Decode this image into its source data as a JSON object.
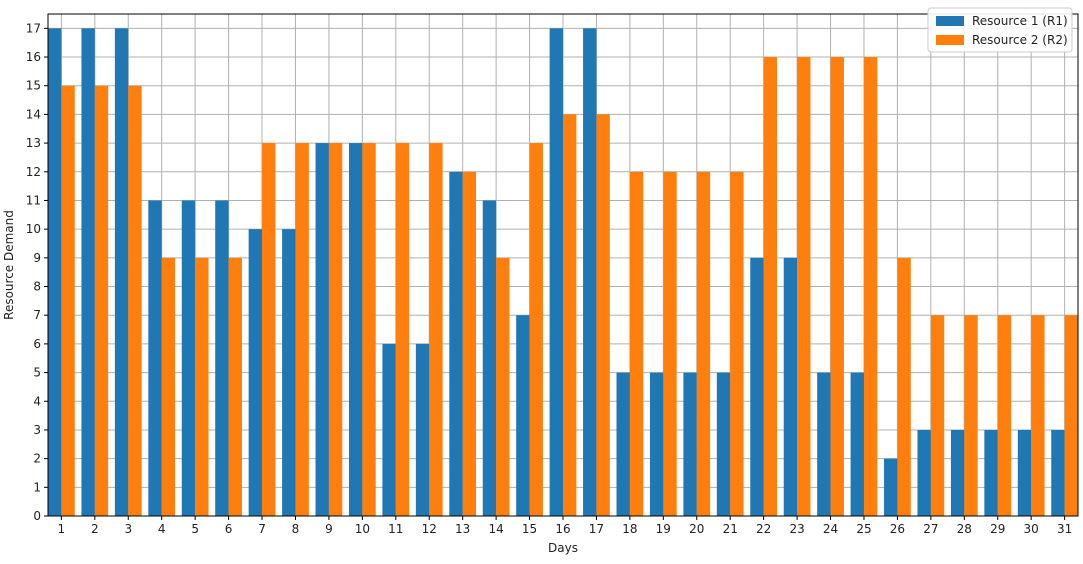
{
  "chart_data": {
    "type": "bar",
    "title": "",
    "xlabel": "Days",
    "ylabel": "Resource Demand",
    "categories": [
      "1",
      "2",
      "3",
      "4",
      "5",
      "6",
      "7",
      "8",
      "9",
      "10",
      "11",
      "12",
      "13",
      "14",
      "15",
      "16",
      "17",
      "18",
      "19",
      "20",
      "21",
      "22",
      "23",
      "24",
      "25",
      "26",
      "27",
      "28",
      "29",
      "30",
      "31"
    ],
    "series": [
      {
        "name": "Resource 1 (R1)",
        "color": "#1f77b4",
        "values": [
          17,
          17,
          17,
          11,
          11,
          11,
          10,
          10,
          13,
          13,
          6,
          6,
          12,
          11,
          7,
          17,
          17,
          5,
          5,
          5,
          5,
          9,
          9,
          5,
          5,
          2,
          3,
          3,
          3,
          3,
          3
        ]
      },
      {
        "name": "Resource 2 (R2)",
        "color": "#ff7f0e",
        "values": [
          15,
          15,
          15,
          9,
          9,
          9,
          13,
          13,
          13,
          13,
          13,
          13,
          12,
          9,
          13,
          14,
          14,
          12,
          12,
          12,
          12,
          16,
          16,
          16,
          16,
          9,
          7,
          7,
          7,
          7,
          7
        ]
      }
    ],
    "ylim": [
      0,
      17
    ],
    "yticks": [
      "0",
      "1",
      "2",
      "3",
      "4",
      "5",
      "6",
      "7",
      "8",
      "9",
      "10",
      "11",
      "12",
      "13",
      "14",
      "15",
      "16",
      "17"
    ],
    "grid": true,
    "legend_position": "top-right"
  }
}
